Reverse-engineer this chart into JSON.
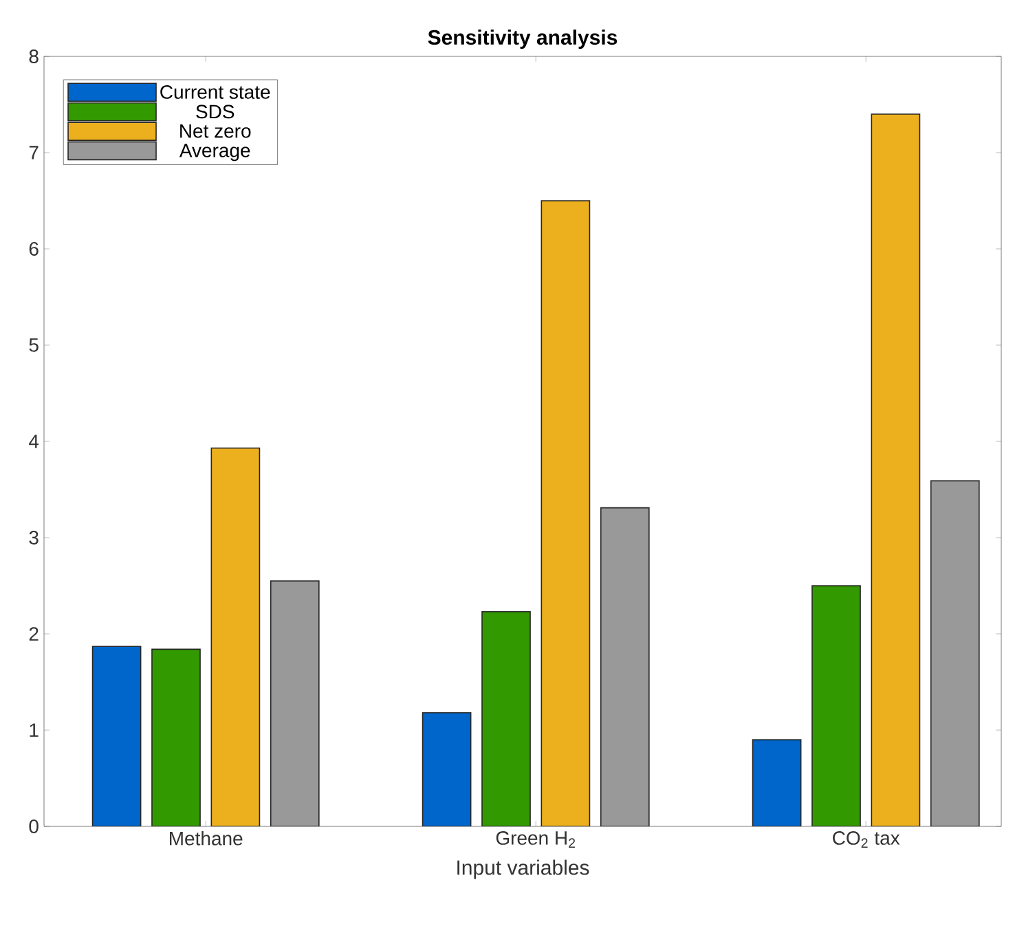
{
  "chart_data": {
    "type": "bar",
    "title": "Sensitivity analysis",
    "xlabel": "Input variables",
    "categories": [
      "Methane",
      "Green H$_{2}$",
      "CO$_{2}$ tax"
    ],
    "series": [
      {
        "name": "Current state",
        "color": "#0066cc",
        "values": [
          1.87,
          1.18,
          0.9
        ]
      },
      {
        "name": "SDS",
        "color": "#339900",
        "values": [
          1.84,
          2.23,
          2.5
        ]
      },
      {
        "name": "Net zero",
        "color": "#ecb01f",
        "values": [
          3.93,
          6.5,
          7.4
        ]
      },
      {
        "name": "Average",
        "color": "#999999",
        "values": [
          2.55,
          3.31,
          3.59
        ]
      }
    ],
    "ylim": [
      0,
      8
    ],
    "yticks": [
      0,
      1,
      2,
      3,
      4,
      5,
      6,
      7,
      8
    ],
    "grid": false,
    "legend": "top left"
  }
}
